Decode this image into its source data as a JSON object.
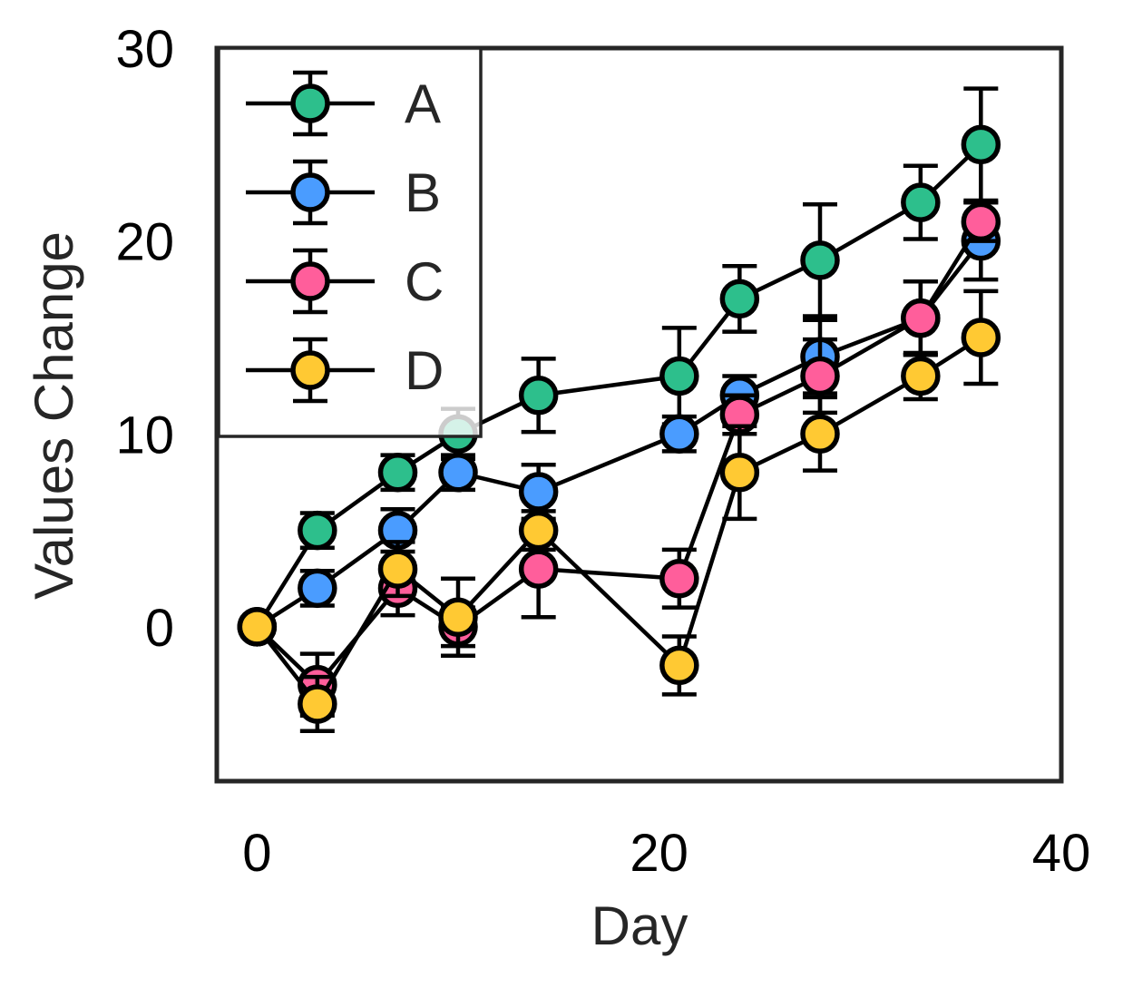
{
  "chart_data": {
    "type": "line",
    "xlabel": "Day",
    "ylabel": "Values Change",
    "xlim": [
      -2,
      40
    ],
    "ylim": [
      -8,
      30
    ],
    "xticks": [
      0,
      20,
      40
    ],
    "yticks": [
      0,
      10,
      20,
      30
    ],
    "grid": false,
    "legend_position": "top-left",
    "series": [
      {
        "name": "A",
        "color": "#2dbf8c",
        "x": [
          0,
          3,
          7,
          10,
          14,
          21,
          24,
          28,
          33,
          36
        ],
        "y": [
          0,
          5,
          8,
          10,
          12,
          13,
          17,
          19,
          22,
          25
        ],
        "err": [
          0.3,
          0.9,
          0.9,
          1.3,
          1.9,
          2.5,
          1.7,
          2.9,
          1.9,
          2.9
        ]
      },
      {
        "name": "B",
        "color": "#4a9cff",
        "x": [
          0,
          3,
          7,
          10,
          14,
          21,
          24,
          28,
          33,
          36
        ],
        "y": [
          0,
          2,
          5,
          8,
          7,
          10,
          12,
          14,
          16,
          20
        ],
        "err": [
          0.3,
          0.9,
          1.1,
          0.9,
          1.4,
          0.9,
          1.0,
          1.9,
          1.9,
          2.0
        ]
      },
      {
        "name": "C",
        "color": "#ff5e9b",
        "x": [
          0,
          3,
          7,
          10,
          14,
          21,
          24,
          28,
          33,
          36
        ],
        "y": [
          0,
          -3,
          2,
          0,
          3,
          2.5,
          11,
          13,
          16,
          21
        ],
        "err": [
          0.3,
          1.6,
          1.4,
          1.0,
          2.5,
          1.5,
          1.0,
          1.9,
          1.9,
          1.0
        ]
      },
      {
        "name": "D",
        "color": "#ffc933",
        "x": [
          0,
          3,
          7,
          10,
          14,
          21,
          24,
          28,
          33,
          36
        ],
        "y": [
          0,
          -4,
          3,
          0.5,
          5,
          -2,
          8,
          10,
          13,
          15
        ],
        "err": [
          0.3,
          1.4,
          1.4,
          2.0,
          1.0,
          1.5,
          2.4,
          1.9,
          1.2,
          2.4
        ]
      }
    ]
  }
}
